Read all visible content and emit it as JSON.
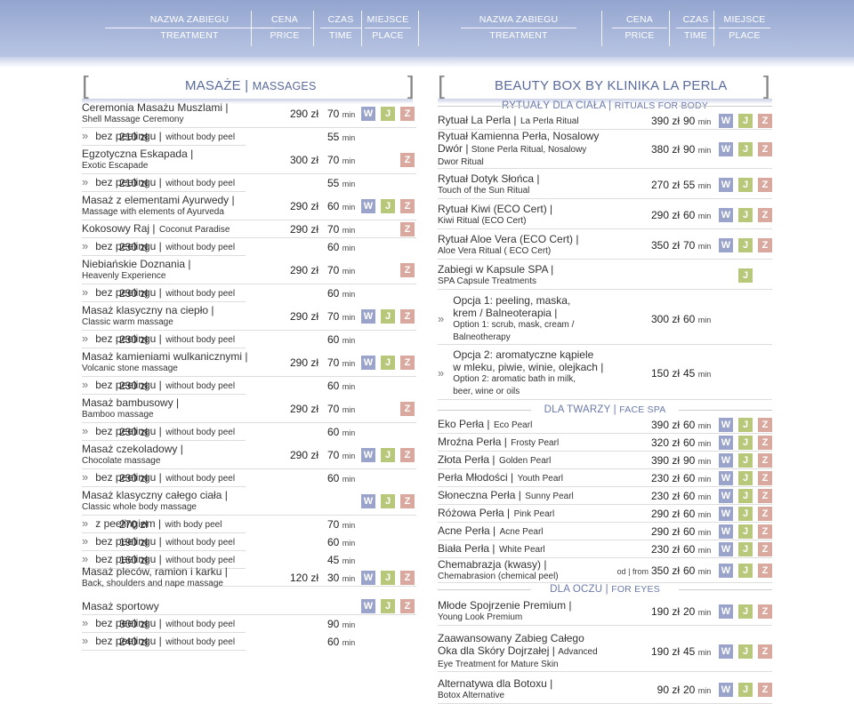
{
  "header": {
    "columns": [
      {
        "pl": "NAZWA ZABIEGU",
        "en": "TREATMENT"
      },
      {
        "pl": "CENA",
        "en": "PRICE"
      },
      {
        "pl": "CZAS",
        "en": "TIME"
      },
      {
        "pl": "MIEJSCE",
        "en": "PLACE"
      },
      {
        "pl": "NAZWA ZABIEGU",
        "en": "TREATMENT"
      },
      {
        "pl": "CENA",
        "en": "PRICE"
      },
      {
        "pl": "CZAS",
        "en": "TIME"
      },
      {
        "pl": "MIEJSCE",
        "en": "PLACE"
      }
    ]
  },
  "badge_colors": {
    "W": "#9aa3c9",
    "J": "#b8c87a",
    "Z": "#d9a99f"
  },
  "left": {
    "title_pl": "MASAŻE",
    "title_en": "MASSAGES",
    "rows": [
      {
        "pl": "Ceremonia Masażu Muszlami |",
        "en": "Shell Massage Ceremony",
        "price": "290 zł",
        "time": "70",
        "unit": "min",
        "places": [
          "W",
          "J",
          "Z"
        ]
      },
      {
        "sub": true,
        "pl": "bez peelingu |",
        "en": "without body peel",
        "price": "210 zł",
        "time": "55",
        "unit": "min",
        "places": []
      },
      {
        "pl": "Egzotyczna Eskapada |",
        "en": "Exotic Escapade",
        "price": "300 zł",
        "time": "70",
        "unit": "min",
        "places": [
          "Z"
        ]
      },
      {
        "sub": true,
        "pl": "bez peelingu |",
        "en": "without body peel",
        "price": "210 zł",
        "time": "55",
        "unit": "min",
        "places": []
      },
      {
        "pl": "Masaż z elementami Ayurwedy |",
        "en": "Massage with elements of Ayurveda",
        "price": "290 zł",
        "time": "60",
        "unit": "min",
        "places": [
          "W",
          "J",
          "Z"
        ]
      },
      {
        "inline": true,
        "pl": "Kokosowy Raj |",
        "en": "Coconut Paradise",
        "price": "290 zł",
        "time": "70",
        "unit": "min",
        "places": [
          "Z"
        ]
      },
      {
        "sub": true,
        "pl": "bez peelingu |",
        "en": "without body peel",
        "price": "230 zł",
        "time": "60",
        "unit": "min",
        "places": []
      },
      {
        "pl": "Niebiańskie Doznania |",
        "en": "Heavenly Experience",
        "price": "290 zł",
        "time": "70",
        "unit": "min",
        "places": [
          "Z"
        ]
      },
      {
        "sub": true,
        "pl": "bez peelingu |",
        "en": "without body peel",
        "price": "230 zł",
        "time": "60",
        "unit": "min",
        "places": []
      },
      {
        "pl": "Masaż klasyczny na ciepło |",
        "en": "Classic warm massage",
        "price": "290 zł",
        "time": "70",
        "unit": "min",
        "places": [
          "W",
          "J",
          "Z"
        ]
      },
      {
        "sub": true,
        "pl": "bez peelingu |",
        "en": "without body peel",
        "price": "230 zł",
        "time": "60",
        "unit": "min",
        "places": []
      },
      {
        "pl": "Masaż kamieniami wulkanicznymi |",
        "en": "Volcanic stone massage",
        "price": "290 zł",
        "time": "70",
        "unit": "min",
        "places": [
          "W",
          "J",
          "Z"
        ]
      },
      {
        "sub": true,
        "pl": "bez peelingu |",
        "en": "without body peel",
        "price": "230 zł",
        "time": "60",
        "unit": "min",
        "places": []
      },
      {
        "pl": "Masaż bambusowy |",
        "en": "Bamboo massage",
        "price": "290 zł",
        "time": "70",
        "unit": "min",
        "places": [
          "Z"
        ]
      },
      {
        "sub": true,
        "pl": "bez peelingu |",
        "en": "without body peel",
        "price": "230 zł",
        "time": "60",
        "unit": "min",
        "places": []
      },
      {
        "pl": "Masaż czekoladowy |",
        "en": "Chocolate massage",
        "price": "290 zł",
        "time": "70",
        "unit": "min",
        "places": [
          "W",
          "J",
          "Z"
        ]
      },
      {
        "sub": true,
        "pl": "bez peelingu |",
        "en": "without body peel",
        "price": "230 zł",
        "time": "60",
        "unit": "min",
        "places": []
      },
      {
        "pl": "Masaż klasyczny całego ciała |",
        "en": "Classic whole body massage",
        "price": "",
        "time": "",
        "unit": "",
        "places": [
          "W",
          "J",
          "Z"
        ]
      },
      {
        "sub": true,
        "pl": "z peelingiem |",
        "en": "with body peel",
        "price": "270 zł",
        "time": "70",
        "unit": "min",
        "places": []
      },
      {
        "sub": true,
        "pl": "bez peelingu |",
        "en": "without body peel",
        "price": "190 zł",
        "time": "60",
        "unit": "min",
        "places": []
      },
      {
        "sub": true,
        "pl": "bez peelingu |",
        "en": "without body peel",
        "price": "160 zł",
        "time": "45",
        "unit": "min",
        "places": []
      },
      {
        "pl": "Masaż pleców, ramion i karku |",
        "en": "Back, shoulders and nape massage",
        "price": "120 zł",
        "time": "30",
        "unit": "min",
        "places": [
          "W",
          "J",
          "Z"
        ]
      },
      {
        "single": true,
        "pl": "Masaż sportowy",
        "en": "",
        "price": "",
        "time": "",
        "unit": "",
        "places": [
          "W",
          "J",
          "Z"
        ]
      },
      {
        "sub": true,
        "pl": "bez peelingu |",
        "en": "without body peel",
        "price": "300 zł",
        "time": "90",
        "unit": "min",
        "places": []
      },
      {
        "sub": true,
        "pl": "bez peelingu |",
        "en": "without body peel",
        "price": "240 zł",
        "time": "60",
        "unit": "min",
        "places": []
      }
    ]
  },
  "right": {
    "title": "BEAUTY BOX BY KLINIKA LA PERLA",
    "sections": [
      {
        "pl": "RYTUAŁY DLA CIAŁA",
        "en": "RITUALS FOR BODY"
      },
      {
        "pl": "DLA TWARZY",
        "en": "FACE SPA"
      },
      {
        "pl": "DLA OCZU",
        "en": "FOR EYES"
      }
    ],
    "rows": [
      {
        "inline": true,
        "pl": "Rytuał La Perla |",
        "en": "La Perla Ritual",
        "price": "390 zł",
        "time": "90",
        "unit": "min",
        "places": [
          "W",
          "J",
          "Z"
        ]
      },
      {
        "lines": [
          "Rytuał Kamienna Perła, Nosalowy",
          "Dwór | ",
          "Dwor Ritual"
        ],
        "en_mid": "Stone Perla Ritual, Nosalowy",
        "price": "380 zł",
        "time": "90",
        "unit": "min",
        "places": [
          "W",
          "J",
          "Z"
        ]
      },
      {
        "pl": "Rytuał Dotyk Słońca |",
        "en": "Touch of the Sun Ritual",
        "price": "270 zł",
        "time": "55",
        "unit": "min",
        "places": [
          "W",
          "J",
          "Z"
        ]
      },
      {
        "pl": "Rytuał Kiwi (ECO Cert) |",
        "en": "Kiwi Ritual (ECO Cert)",
        "price": "290 zł",
        "time": "60",
        "unit": "min",
        "places": [
          "W",
          "J",
          "Z"
        ]
      },
      {
        "pl": "Rytuał Aloe Vera (ECO Cert) |",
        "en": "Aloe Vera Ritual ( ECO Cert)",
        "price": "350 zł",
        "time": "70",
        "unit": "min",
        "places": [
          "W",
          "J",
          "Z"
        ]
      },
      {
        "pl": "Zabiegi w Kapsule SPA |",
        "en": "SPA Capsule Treatments",
        "price": "",
        "time": "",
        "unit": "",
        "places": [
          "J"
        ]
      },
      {
        "opt": true,
        "l1": "Opcja 1: peeling, maska,",
        "l2": "krem / Balneoterapia |",
        "l3": "Option 1: scrub, mask, cream /",
        "l4": "Balneotherapy",
        "price": "300 zł",
        "time": "60",
        "unit": "min",
        "places": []
      },
      {
        "opt": true,
        "l1": "Opcja 2: aromatyczne kąpiele",
        "l2": "w mleku, piwie, winie, olejkach |",
        "l3": "Option 2: aromatic bath in milk,",
        "l4": "beer, wine or oils",
        "price": "150 zł",
        "time": "45",
        "unit": "min",
        "places": []
      },
      {
        "inline": true,
        "pl": "Eko Perła |",
        "en": "Eco Pearl",
        "price": "390 zł",
        "time": "60",
        "unit": "min",
        "places": [
          "W",
          "J",
          "Z"
        ]
      },
      {
        "inline": true,
        "pl": "Mroźna Perła |",
        "en": "Frosty Pearl",
        "price": "320 zł",
        "time": "60",
        "unit": "min",
        "places": [
          "W",
          "J",
          "Z"
        ]
      },
      {
        "inline": true,
        "pl": "Złota Perła |",
        "en": "Golden Pearl",
        "price": "390 zł",
        "time": "90",
        "unit": "min",
        "places": [
          "W",
          "J",
          "Z"
        ]
      },
      {
        "inline": true,
        "pl": "Perła Młodości |",
        "en": "Youth Pearl",
        "price": "230 zł",
        "time": "60",
        "unit": "min",
        "places": [
          "W",
          "J",
          "Z"
        ]
      },
      {
        "inline": true,
        "pl": "Słoneczna Perła |",
        "en": "Sunny Pearl",
        "price": "230 zł",
        "time": "60",
        "unit": "min",
        "places": [
          "W",
          "J",
          "Z"
        ]
      },
      {
        "inline": true,
        "pl": "Różowa Perła |",
        "en": "Pink Pearl",
        "price": "290 zł",
        "time": "60",
        "unit": "min",
        "places": [
          "W",
          "J",
          "Z"
        ]
      },
      {
        "inline": true,
        "pl": "Acne Perła |",
        "en": "Acne Pearl",
        "price": "290 zł",
        "time": "60",
        "unit": "min",
        "places": [
          "W",
          "J",
          "Z"
        ]
      },
      {
        "inline": true,
        "pl": "Biała Perła |",
        "en": "White Pearl",
        "price": "230 zł",
        "time": "60",
        "unit": "min",
        "places": [
          "W",
          "J",
          "Z"
        ]
      },
      {
        "pl": "Chemabrazja (kwasy) |",
        "en": "Chemabrasion (chemical peel)",
        "prefix": "od | from",
        "price": "350 zł",
        "time": "60",
        "unit": "min",
        "places": [
          "W",
          "J",
          "Z"
        ]
      },
      {
        "pl": "Młode Spojrzenie Premium |",
        "en": "Young Look Premium",
        "price": "190 zł",
        "time": "20",
        "unit": "min",
        "places": [
          "W",
          "J",
          "Z"
        ]
      },
      {
        "lines3": true,
        "l1": "Zaawansowany Zabieg Całego",
        "l2": "Oka dla Skóry Dojrzałej |",
        "l2en": "Advanced",
        "l3": "Eye Treatment for Mature Skin",
        "price": "190 zł",
        "time": "45",
        "unit": "min",
        "places": [
          "W",
          "J",
          "Z"
        ]
      },
      {
        "pl": "Alternatywa dla Botoxu |",
        "en": "Botox Alternative",
        "price": "90 zł",
        "time": "20",
        "unit": "min",
        "places": [
          "W",
          "J",
          "Z"
        ]
      }
    ]
  }
}
